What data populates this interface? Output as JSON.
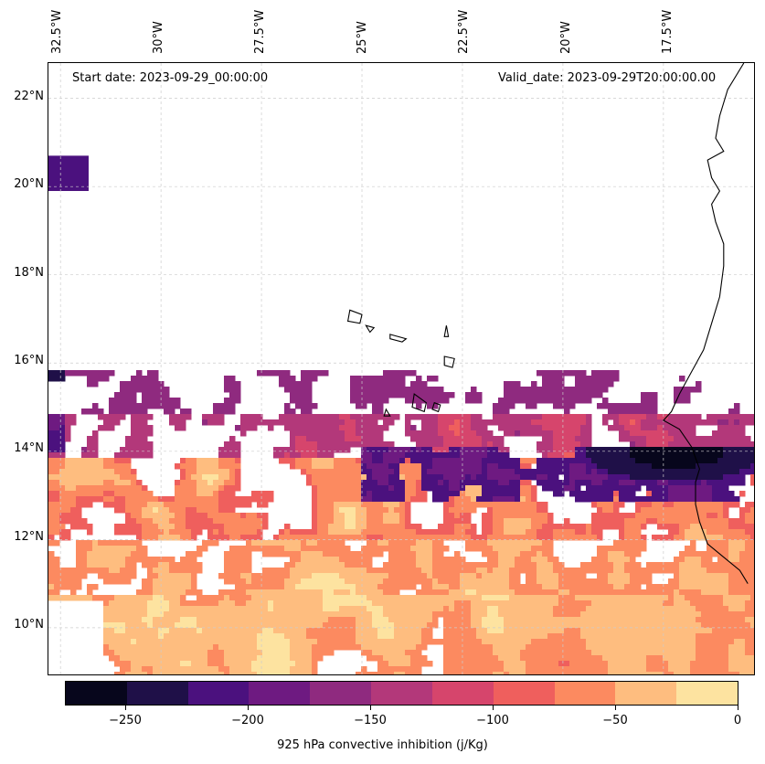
{
  "map": {
    "start_date": "Start date: 2023-09-29_00:00:00",
    "valid_date": "Valid_date: 2023-09-29T20:00:00.00",
    "longitude_labels": [
      "32.5°W",
      "30°W",
      "27.5°W",
      "25°W",
      "22.5°W",
      "20°W",
      "17.5°W"
    ],
    "latitude_labels": [
      "22°N",
      "20°N",
      "18°N",
      "16°N",
      "14°N",
      "12°N",
      "10°N"
    ],
    "variable": "925 hPa convective inhibition",
    "units": "j/Kg"
  },
  "colorbar": {
    "title": "925 hPa convective inhibition (j/Kg)",
    "tick_labels": [
      "−250",
      "−200",
      "−150",
      "−100",
      "−50",
      "0"
    ],
    "levels": [
      -275,
      -250,
      -225,
      -200,
      -175,
      -150,
      -125,
      -100,
      -75,
      -50,
      -25,
      0
    ],
    "colors": [
      "#07061c",
      "#1f1048",
      "#4b117e",
      "#6e1a81",
      "#8f2a7f",
      "#b3387a",
      "#d6456c",
      "#ef5f5d",
      "#fc8a60",
      "#febd7f",
      "#fde3a0"
    ]
  },
  "chart_data": {
    "type": "map-contourf",
    "title": "",
    "region": {
      "lon_range": [
        -32.8,
        -15.2
      ],
      "lat_range": [
        8.9,
        22.8
      ]
    },
    "field": "925 hPa convective inhibition (j/Kg)",
    "colorbar_range": [
      -275,
      0
    ],
    "observed_pattern": "Negative CIN (mostly -100 to -25 j/Kg) over southern domain 9–14°N; strongest values (< -225) near 14°N, 16–18°W off Senegal coast; white (no data / above 0) over most of northern domain."
  }
}
